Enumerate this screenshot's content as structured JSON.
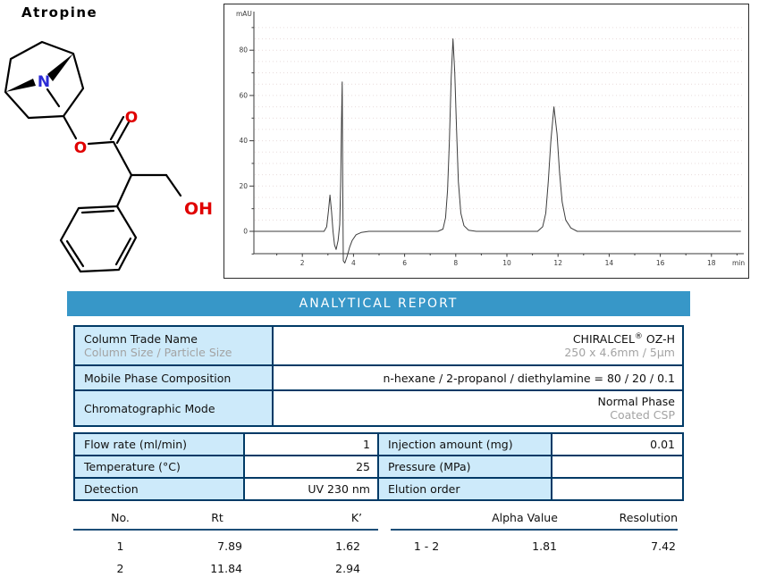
{
  "page_title": "Atropine",
  "molecule": {
    "name": "Atropine",
    "atom_labels": {
      "nitrogen": "N",
      "ester_oxygen": "O",
      "carbonyl_oxygen": "O",
      "hydroxyl": "OH"
    },
    "colors": {
      "nitrogen": "#2b2bd6",
      "oxygen": "#e00000",
      "bond": "#000000"
    }
  },
  "banner": {
    "label": "ANALYTICAL REPORT",
    "bg": "#3797c8",
    "fg": "#ffffff"
  },
  "info_table": {
    "rows": [
      {
        "label": "Column Trade Name",
        "sublabel": "Column Size / Particle Size",
        "value_main": "CHIRALCEL",
        "value_sup": "®",
        "value_tail": " OZ-H",
        "subvalue": "250 x 4.6mm / 5µm"
      },
      {
        "label": "Mobile Phase Composition",
        "value_main": "n-hexane / 2-propanol / diethylamine = 80 / 20 / 0.1"
      },
      {
        "label": "Chromatographic Mode",
        "value_main": "Normal Phase",
        "subvalue": "Coated CSP"
      }
    ]
  },
  "conditions_table": {
    "rows": [
      {
        "label": "Flow rate (ml/min)",
        "value": "1",
        "label2": "Injection amount (mg)",
        "value2": "0.01"
      },
      {
        "label": "Temperature (°C)",
        "value": "25",
        "label2": "Pressure (MPa)",
        "value2": ""
      },
      {
        "label": "Detection",
        "value": "UV 230 nm",
        "label2": "Elution order",
        "value2": ""
      }
    ]
  },
  "results": {
    "left": {
      "headers": [
        "No.",
        "Rt",
        "K’"
      ],
      "rows": [
        [
          "1",
          "7.89",
          "1.62"
        ],
        [
          "2",
          "11.84",
          "2.94"
        ]
      ]
    },
    "right": {
      "headers": [
        "Alpha Value",
        "Resolution"
      ],
      "pair_label": "1 - 2",
      "alpha": "1.81",
      "resolution": "7.42"
    }
  },
  "chart_data": {
    "type": "line",
    "title": "HPLC chromatogram of Atropine",
    "xlabel": "min",
    "ylabel": "mAU",
    "xlim": [
      0,
      19.2
    ],
    "ylim": [
      -15,
      97
    ],
    "x_ticks": [
      2,
      4,
      6,
      8,
      10,
      12,
      14,
      16,
      18
    ],
    "y_ticks": [
      0,
      20,
      40,
      60,
      80
    ],
    "grid": "dotted-horizontal",
    "legend": "none",
    "peaks": [
      {
        "no": 1,
        "rt_min": 7.89,
        "height_mAU": 85
      },
      {
        "no": 2,
        "rt_min": 11.84,
        "height_mAU": 55
      }
    ],
    "system_peaks": [
      {
        "rt_min": 3.1,
        "height_mAU": 16
      },
      {
        "rt_min": 3.55,
        "height_mAU": 66,
        "note": "injection spike with dip to -14 mAU"
      }
    ],
    "trace": [
      [
        0.1,
        0
      ],
      [
        1,
        0
      ],
      [
        2,
        0
      ],
      [
        2.85,
        0
      ],
      [
        2.95,
        2
      ],
      [
        3.02,
        9
      ],
      [
        3.08,
        16
      ],
      [
        3.14,
        9
      ],
      [
        3.2,
        0
      ],
      [
        3.26,
        -6
      ],
      [
        3.32,
        -8
      ],
      [
        3.4,
        -4
      ],
      [
        3.46,
        3
      ],
      [
        3.5,
        22
      ],
      [
        3.53,
        48
      ],
      [
        3.56,
        66
      ],
      [
        3.58,
        20
      ],
      [
        3.6,
        -13
      ],
      [
        3.66,
        -14
      ],
      [
        3.75,
        -11
      ],
      [
        3.85,
        -7
      ],
      [
        3.95,
        -4
      ],
      [
        4.1,
        -1.5
      ],
      [
        4.3,
        -0.5
      ],
      [
        4.6,
        0
      ],
      [
        5.5,
        0
      ],
      [
        6.5,
        0
      ],
      [
        7.3,
        0
      ],
      [
        7.5,
        1
      ],
      [
        7.6,
        6
      ],
      [
        7.68,
        18
      ],
      [
        7.75,
        40
      ],
      [
        7.82,
        68
      ],
      [
        7.89,
        85
      ],
      [
        7.96,
        70
      ],
      [
        8.03,
        45
      ],
      [
        8.1,
        22
      ],
      [
        8.2,
        8
      ],
      [
        8.32,
        2.5
      ],
      [
        8.5,
        0.5
      ],
      [
        8.8,
        0
      ],
      [
        9.5,
        0
      ],
      [
        10.5,
        0
      ],
      [
        11.2,
        0
      ],
      [
        11.4,
        2
      ],
      [
        11.52,
        8
      ],
      [
        11.62,
        22
      ],
      [
        11.72,
        40
      ],
      [
        11.84,
        55
      ],
      [
        11.96,
        43
      ],
      [
        12.06,
        26
      ],
      [
        12.16,
        13
      ],
      [
        12.3,
        5
      ],
      [
        12.5,
        1.5
      ],
      [
        12.75,
        0
      ],
      [
        13.5,
        0
      ],
      [
        15,
        0
      ],
      [
        16.5,
        0
      ],
      [
        18,
        0
      ],
      [
        19.15,
        0
      ]
    ]
  }
}
